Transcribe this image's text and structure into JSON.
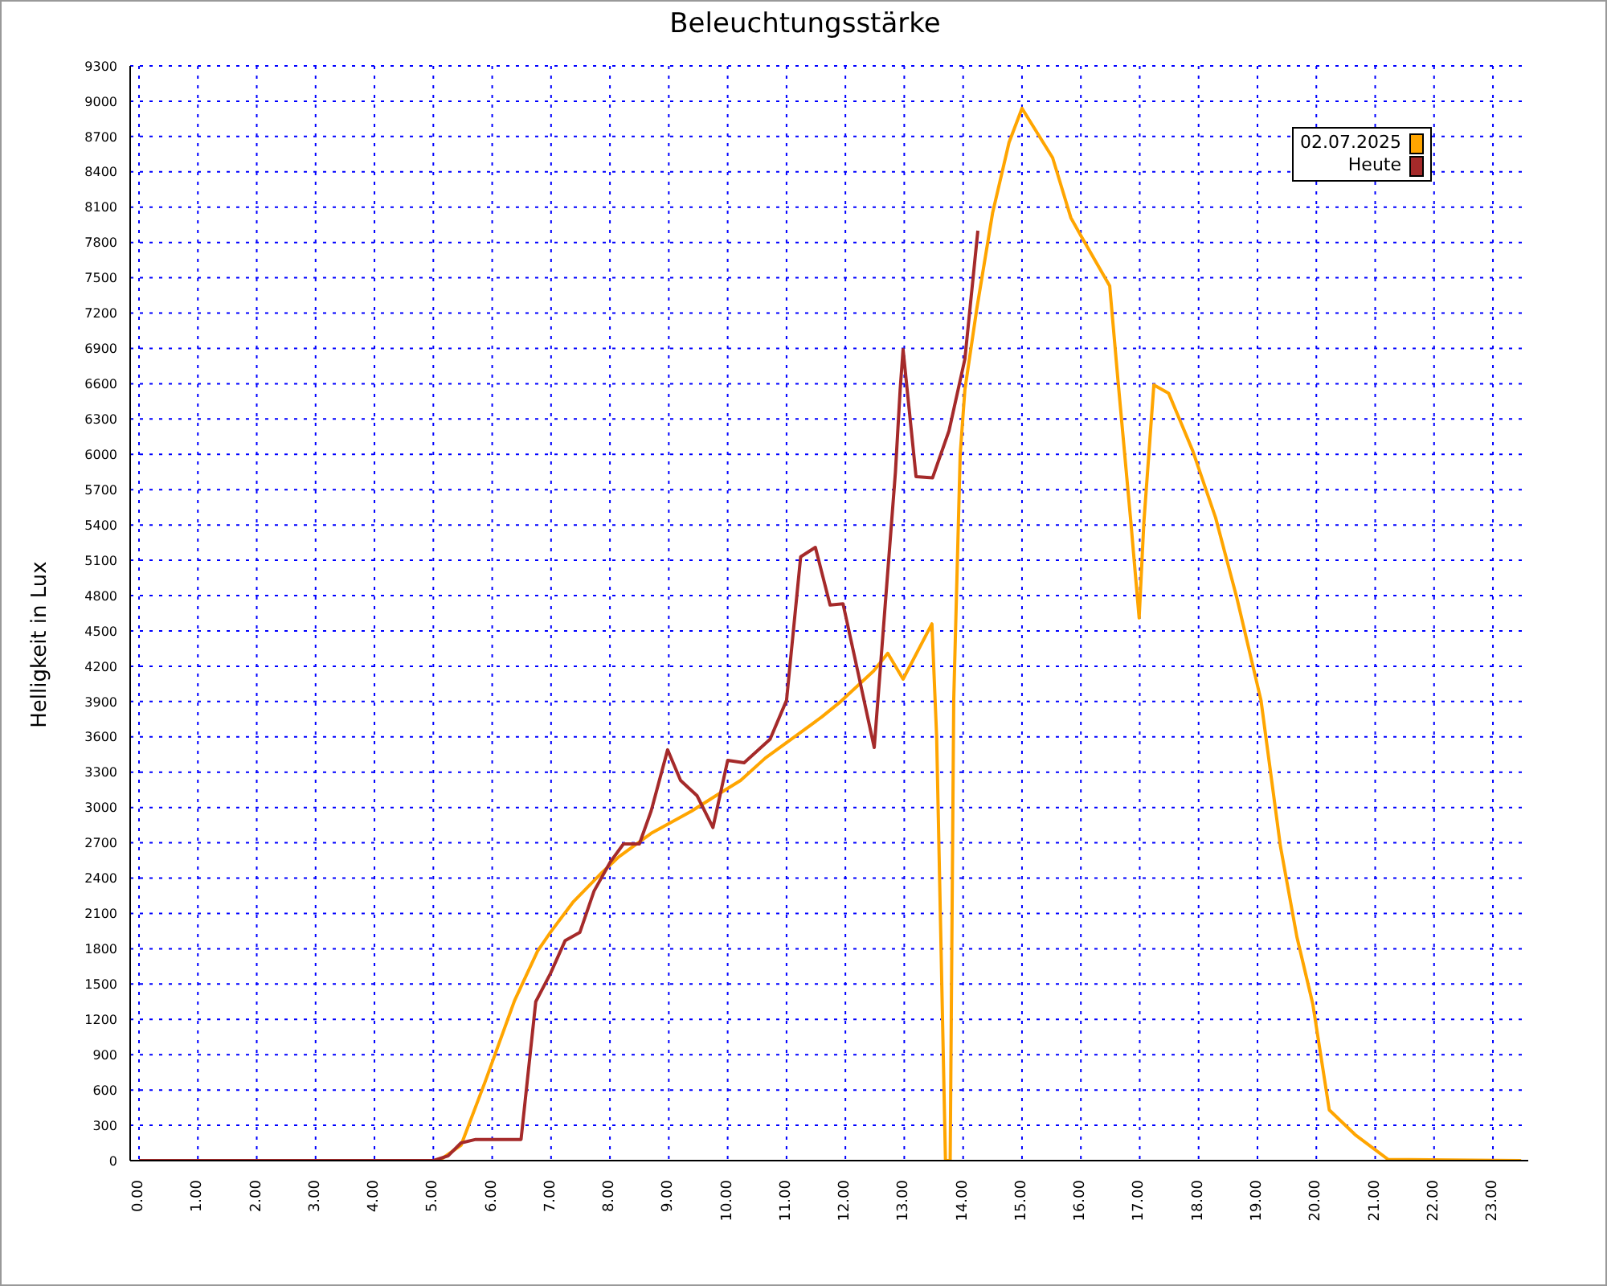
{
  "chart_data": {
    "type": "line",
    "title": "Beleuchtungsstärke",
    "ylabel": "Helligkeit in Lux",
    "xlim": [
      -0.15,
      23.6
    ],
    "xticks": [
      {
        "value": 0,
        "label": "0.00"
      },
      {
        "value": 1,
        "label": "1.00"
      },
      {
        "value": 2,
        "label": "2.00"
      },
      {
        "value": 3,
        "label": "3.00"
      },
      {
        "value": 4,
        "label": "4.00"
      },
      {
        "value": 5,
        "label": "5.00"
      },
      {
        "value": 6,
        "label": "6.00"
      },
      {
        "value": 7,
        "label": "7.00"
      },
      {
        "value": 8,
        "label": "8.00"
      },
      {
        "value": 9,
        "label": "9.00"
      },
      {
        "value": 10,
        "label": "10.00"
      },
      {
        "value": 11,
        "label": "11.00"
      },
      {
        "value": 12,
        "label": "12.00"
      },
      {
        "value": 13,
        "label": "13.00"
      },
      {
        "value": 14,
        "label": "14.00"
      },
      {
        "value": 15,
        "label": "15.00"
      },
      {
        "value": 16,
        "label": "16.00"
      },
      {
        "value": 17,
        "label": "17.00"
      },
      {
        "value": 18,
        "label": "18.00"
      },
      {
        "value": 19,
        "label": "19.00"
      },
      {
        "value": 20,
        "label": "20.00"
      },
      {
        "value": 21,
        "label": "21.00"
      },
      {
        "value": 22,
        "label": "22.00"
      },
      {
        "value": 23,
        "label": "23.00"
      }
    ],
    "ylim": [
      0,
      9300
    ],
    "yticks": [
      0,
      300,
      600,
      900,
      1200,
      1500,
      1800,
      2100,
      2400,
      2700,
      3000,
      3300,
      3600,
      3900,
      4200,
      4500,
      4800,
      5100,
      5400,
      5700,
      6000,
      6300,
      6600,
      6900,
      7200,
      7500,
      7800,
      8100,
      8400,
      8700,
      9000,
      9300
    ],
    "grid": true,
    "legend": "top right",
    "marker": "none",
    "line_style": "solid",
    "series": [
      {
        "name": "02.07.2025",
        "color": "#ffa500",
        "x": [
          0,
          5.1,
          5.47,
          5.88,
          6.38,
          6.77,
          6.99,
          7.38,
          7.87,
          8.15,
          8.7,
          9.39,
          9.8,
          10.22,
          10.64,
          11.19,
          11.6,
          11.92,
          12.48,
          12.72,
          12.98,
          13.47,
          13.55,
          13.7,
          13.78,
          13.84,
          13.95,
          14.03,
          14.23,
          14.5,
          14.78,
          15.0,
          15.52,
          15.83,
          16.02,
          16.49,
          16.63,
          16.85,
          16.99,
          17.07,
          17.24,
          17.49,
          17.9,
          18.29,
          18.65,
          19.06,
          19.39,
          19.67,
          19.94,
          20.22,
          20.66,
          21.22,
          23.48
        ],
        "values": [
          0,
          0,
          130,
          670,
          1360,
          1780,
          1940,
          2200,
          2450,
          2580,
          2780,
          2970,
          3100,
          3230,
          3420,
          3620,
          3770,
          3900,
          4160,
          4310,
          4090,
          4560,
          3600,
          0,
          0,
          3910,
          6000,
          6550,
          7230,
          8050,
          8650,
          8940,
          8520,
          8010,
          7840,
          7430,
          6630,
          5420,
          4610,
          5420,
          6590,
          6520,
          6030,
          5460,
          4780,
          3910,
          2670,
          1900,
          1330,
          430,
          220,
          10,
          0
        ]
      },
      {
        "name": "Heute",
        "color": "#a52a2a",
        "x": [
          0,
          5.0,
          5.25,
          5.47,
          5.72,
          6.49,
          6.74,
          6.99,
          7.24,
          7.49,
          7.73,
          8.01,
          8.23,
          8.5,
          8.7,
          8.98,
          9.2,
          9.48,
          9.75,
          10.0,
          10.28,
          10.72,
          11.0,
          11.24,
          11.49,
          11.74,
          11.96,
          12.2,
          12.49,
          12.85,
          12.93,
          12.98,
          13.2,
          13.48,
          13.76,
          14.03,
          14.25
        ],
        "values": [
          0,
          0,
          40,
          150,
          180,
          180,
          1350,
          1590,
          1870,
          1940,
          2290,
          2540,
          2690,
          2690,
          2970,
          3490,
          3230,
          3100,
          2830,
          3400,
          3380,
          3580,
          3910,
          5130,
          5210,
          4720,
          4730,
          4180,
          3510,
          5850,
          6550,
          6890,
          5810,
          5800,
          6200,
          6810,
          7900
        ]
      }
    ]
  }
}
